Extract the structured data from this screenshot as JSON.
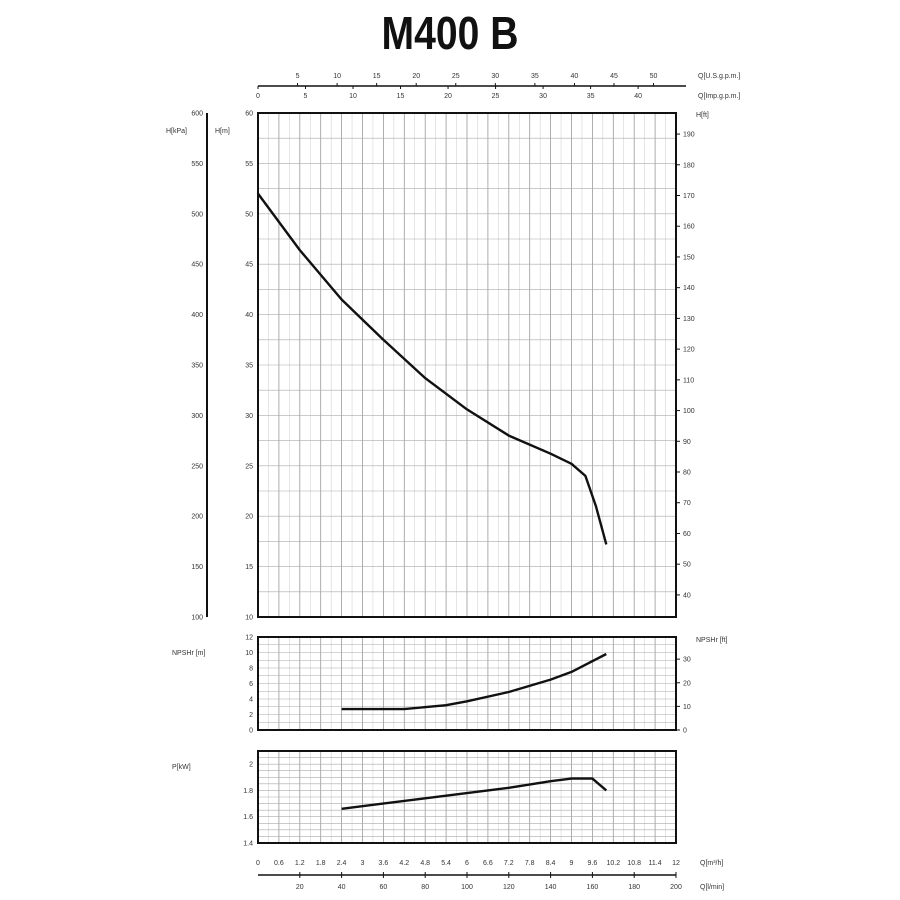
{
  "chart_data": {
    "type": "line",
    "title": "M400 B",
    "x_axes": {
      "bottom_primary": {
        "label": "Q[m³/h]",
        "range": [
          0,
          12
        ],
        "ticks": [
          0,
          0.6,
          1.2,
          1.8,
          2.4,
          3,
          3.6,
          4.2,
          4.8,
          5.4,
          6,
          6.6,
          7.2,
          7.8,
          8.4,
          9,
          9.6,
          10.2,
          10.8,
          11.4,
          12
        ]
      },
      "bottom_secondary": {
        "label": "Q[l/min]",
        "range": [
          0,
          200
        ],
        "ticks": [
          20,
          40,
          60,
          80,
          100,
          120,
          140,
          160,
          180,
          200
        ]
      },
      "top_us": {
        "label": "Q[U.S.g.p.m.]",
        "ticks": [
          5,
          10,
          15,
          20,
          25,
          30,
          35,
          40,
          45,
          50
        ]
      },
      "top_imp": {
        "label": "Q[Imp.g.p.m.]",
        "ticks": [
          0,
          5,
          10,
          15,
          20,
          25,
          30,
          35,
          40
        ]
      }
    },
    "panels": [
      {
        "name": "head",
        "ylabel": "H[m]",
        "ylim": [
          10,
          60
        ],
        "yticks": [
          10,
          15,
          20,
          25,
          30,
          35,
          40,
          45,
          50,
          55,
          60
        ],
        "ylabel_kpa": "H[kPa]",
        "yticks_kpa": [
          100,
          150,
          200,
          250,
          300,
          350,
          400,
          450,
          500,
          550,
          600
        ],
        "ylabel_right": "H[ft]",
        "yticks_right": [
          40,
          50,
          60,
          70,
          80,
          90,
          100,
          110,
          120,
          130,
          140,
          150,
          160,
          170,
          180,
          190
        ],
        "x": [
          0,
          1.2,
          2.4,
          3.6,
          4.8,
          6,
          7.2,
          8.4,
          9,
          9.4,
          9.7,
          10
        ],
        "y": [
          52,
          46.4,
          41.5,
          37.5,
          33.7,
          30.6,
          28,
          26.2,
          25.2,
          24,
          21,
          17.2
        ]
      },
      {
        "name": "npsh",
        "ylabel": "NPSHr [m]",
        "ylim": [
          0,
          12
        ],
        "yticks": [
          0,
          2,
          4,
          6,
          8,
          10,
          12
        ],
        "ylabel_right": "NPSHr [ft]",
        "yticks_right": [
          0,
          10,
          20,
          30
        ],
        "x": [
          2.4,
          4.2,
          5.4,
          6,
          7.2,
          8.4,
          9,
          10
        ],
        "y": [
          2.7,
          2.7,
          3.2,
          3.7,
          4.9,
          6.5,
          7.5,
          9.8
        ]
      },
      {
        "name": "power",
        "ylabel": "P[kW]",
        "ylim": [
          1.4,
          2.1
        ],
        "yticks": [
          1.4,
          1.6,
          1.8,
          2
        ],
        "x": [
          2.4,
          4.8,
          6,
          7.2,
          8.4,
          9,
          9.6,
          10
        ],
        "y": [
          1.66,
          1.74,
          1.78,
          1.82,
          1.87,
          1.89,
          1.89,
          1.8
        ]
      }
    ],
    "grid": true
  }
}
